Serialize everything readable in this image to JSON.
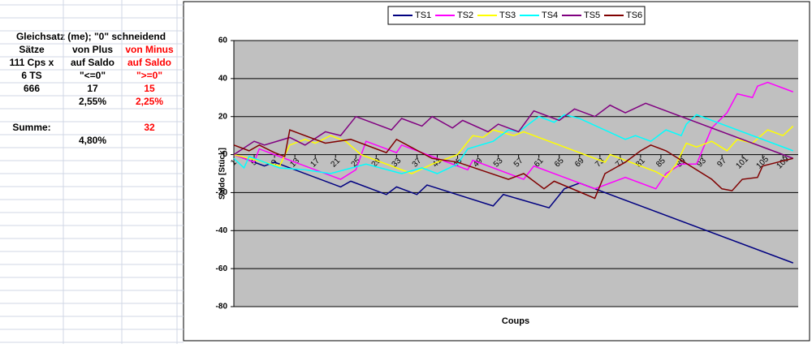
{
  "sheet": {
    "title": "Gleichsatz (me); \"0\" schneidend",
    "rows": [
      [
        "Sätze",
        "von Plus",
        "von Minus"
      ],
      [
        "111 Cps x",
        "auf Saldo",
        "auf Saldo"
      ],
      [
        "6 TS",
        "\"<=0\"",
        "\">=0\""
      ],
      [
        "666",
        "17",
        "15"
      ],
      [
        null,
        "2,55%",
        "2,25%"
      ],
      [
        null,
        null,
        null
      ],
      [
        "Summe:",
        null,
        "32"
      ],
      [
        null,
        "4,80%",
        null
      ]
    ]
  },
  "chart_data": {
    "type": "line",
    "x_label": "Coups",
    "y_label": "Saldo [Stück]",
    "xlim": [
      1,
      112
    ],
    "xticks": [
      1,
      5,
      9,
      13,
      17,
      21,
      25,
      29,
      33,
      37,
      41,
      45,
      49,
      53,
      57,
      61,
      65,
      69,
      73,
      77,
      81,
      85,
      89,
      93,
      97,
      101,
      105,
      109
    ],
    "ylim": [
      -80,
      60
    ],
    "yticks": [
      -80,
      -60,
      -40,
      -20,
      0,
      20,
      40,
      60
    ],
    "grid": true,
    "legend": "top",
    "series": [
      {
        "name": "TS1",
        "color": "#000080",
        "x": [
          1,
          7,
          9,
          22,
          24,
          31,
          33,
          37,
          39,
          52,
          54,
          63,
          66,
          69,
          111
        ],
        "values": [
          0,
          -6,
          -4,
          -17,
          -14,
          -21,
          -17,
          -21,
          -16,
          -27,
          -21,
          -28,
          -18,
          -15,
          -57
        ]
      },
      {
        "name": "TS2",
        "color": "#ff00ff",
        "x": [
          1,
          5,
          6,
          10,
          22,
          25,
          27,
          33,
          34,
          40,
          47,
          48,
          58,
          60,
          66,
          72,
          78,
          84,
          86,
          89,
          92,
          95,
          98,
          100,
          103,
          104,
          106,
          111
        ],
        "values": [
          0,
          -4,
          3,
          -1,
          -13,
          -8,
          7,
          1,
          5,
          -1,
          -8,
          -3,
          -13,
          -6,
          -12,
          -18,
          -12,
          -18,
          -10,
          -5,
          -5,
          14,
          22,
          32,
          30,
          36,
          38,
          33
        ]
      },
      {
        "name": "TS3",
        "color": "#ffff00",
        "x": [
          1,
          10,
          12,
          15,
          17,
          20,
          23,
          26,
          36,
          40,
          45,
          48,
          50,
          52,
          56,
          58,
          62,
          74,
          75,
          84,
          86,
          88,
          90,
          92,
          95,
          98,
          100,
          103,
          106,
          109,
          111
        ],
        "values": [
          0,
          -6,
          5,
          8,
          6,
          10,
          7,
          0,
          -10,
          -5,
          0,
          10,
          9,
          13,
          10,
          12,
          8,
          -4,
          0,
          -9,
          -12,
          -5,
          6,
          4,
          7,
          2,
          8,
          6,
          13,
          10,
          15
        ]
      },
      {
        "name": "TS4",
        "color": "#00ffff",
        "x": [
          1,
          3,
          4,
          10,
          15,
          20,
          27,
          34,
          38,
          41,
          45,
          47,
          52,
          55,
          57,
          61,
          64,
          66,
          69,
          78,
          80,
          83,
          86,
          89,
          90,
          92,
          111
        ],
        "values": [
          -2,
          -7,
          -1,
          -7,
          -8,
          -10,
          -5,
          -10,
          -7,
          -10,
          -5,
          3,
          7,
          13,
          12,
          20,
          17,
          21,
          19,
          8,
          10,
          7,
          13,
          10,
          16,
          21,
          2
        ]
      },
      {
        "name": "TS5",
        "color": "#800080",
        "x": [
          1,
          5,
          7,
          12,
          15,
          19,
          22,
          25,
          32,
          34,
          38,
          40,
          44,
          46,
          51,
          53,
          57,
          60,
          65,
          68,
          72,
          75,
          78,
          82,
          111
        ],
        "values": [
          0,
          7,
          5,
          9,
          5,
          12,
          10,
          20,
          13,
          19,
          15,
          20,
          14,
          18,
          12,
          16,
          12,
          23,
          18,
          24,
          20,
          26,
          22,
          27,
          -2
        ]
      },
      {
        "name": "TS6",
        "color": "#800000",
        "x": [
          1,
          4,
          6,
          9,
          11,
          12,
          19,
          24,
          31,
          33,
          40,
          45,
          55,
          58,
          62,
          64,
          72,
          74,
          78,
          81,
          83,
          86,
          95,
          97,
          99,
          101,
          104,
          105,
          108,
          111
        ],
        "values": [
          5,
          2,
          5,
          1,
          -1,
          13,
          6,
          8,
          1,
          8,
          -2,
          -4,
          -13,
          -10,
          -18,
          -14,
          -23,
          -10,
          -4,
          2,
          5,
          2,
          -13,
          -18,
          -19,
          -13,
          -12,
          -6,
          -4,
          -2
        ]
      }
    ]
  }
}
